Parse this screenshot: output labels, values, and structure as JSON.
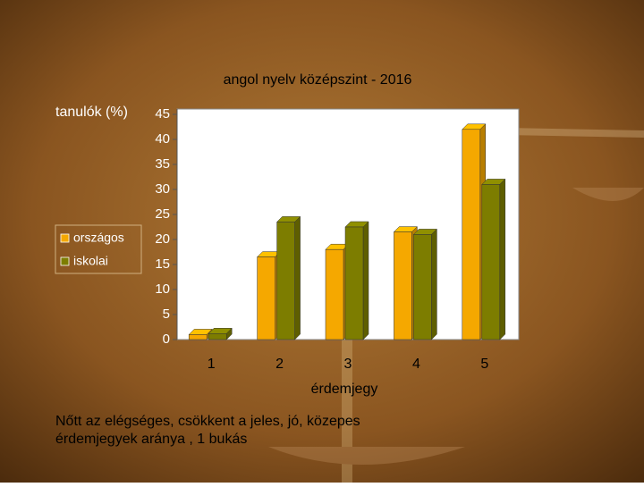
{
  "chart_data": {
    "type": "bar",
    "title": "angol nyelv középszint - 2016",
    "y_label": "tanulók (%)",
    "x_label": "érdemjegy",
    "note": "Nőtt az elégséges, csökkent a jeles, jó, közepes érdemjegyek aránya , 1 bukás",
    "categories": [
      "1",
      "2",
      "3",
      "4",
      "5"
    ],
    "series": [
      {
        "name": "országos",
        "color": "#f5a800",
        "values": [
          1,
          16.5,
          18,
          21.5,
          42
        ]
      },
      {
        "name": "iskolai",
        "color": "#7d7d00",
        "values": [
          1.2,
          23.5,
          22.5,
          21,
          31
        ]
      }
    ],
    "ylim": [
      0,
      45
    ],
    "yticks": [
      0,
      5,
      10,
      15,
      20,
      25,
      30,
      35,
      40,
      45
    ],
    "grid": false,
    "legend": "left"
  }
}
